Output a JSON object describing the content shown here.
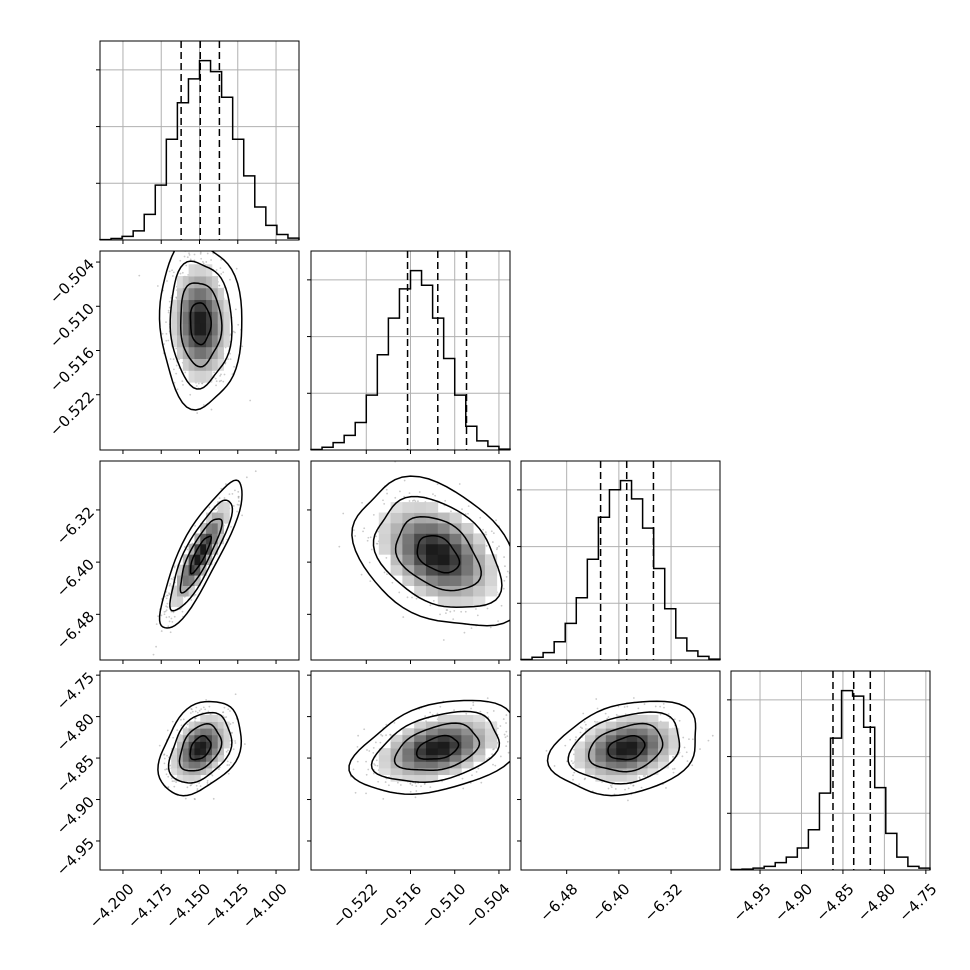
{
  "chart_data": {
    "type": "corner",
    "grid": true,
    "colors": {
      "line": "#000000",
      "grid": "#b0b0b0",
      "density_dark": "#000000",
      "density_light": "#ffffff",
      "scatter": "#9e9e9e"
    },
    "parameters": [
      {
        "range": [
          -4.215,
          -4.085
        ],
        "ticks": [
          "−4.200",
          "−4.175",
          "−4.150",
          "−4.125",
          "−4.100"
        ],
        "tick_values": [
          -4.2,
          -4.175,
          -4.15,
          -4.125,
          -4.1
        ],
        "quantiles": [
          -4.162,
          -4.1495,
          -4.137
        ],
        "mean": -4.1495,
        "sigma": 0.0095
      },
      {
        "range": [
          -0.5295,
          -0.5025
        ],
        "ticks": [
          "−0.522",
          "−0.516",
          "−0.510",
          "−0.504"
        ],
        "tick_values": [
          -0.522,
          -0.516,
          -0.51,
          -0.504
        ],
        "quantiles": [
          -0.5164,
          -0.5123,
          -0.5084
        ],
        "mean": -0.5123,
        "sigma": 0.004
      },
      {
        "range": [
          -6.55,
          -6.245
        ],
        "ticks": [
          "−6.48",
          "−6.40",
          "−6.32"
        ],
        "tick_values": [
          -6.48,
          -6.4,
          -6.32
        ],
        "quantiles": [
          -6.428,
          -6.388,
          -6.347
        ],
        "mean": -6.388,
        "sigma": 0.04
      },
      {
        "range": [
          -4.985,
          -4.745
        ],
        "ticks": [
          "−4.95",
          "−4.90",
          "−4.85",
          "−4.80",
          "−4.75"
        ],
        "tick_values": [
          -4.95,
          -4.9,
          -4.85,
          -4.8,
          -4.75
        ],
        "quantiles": [
          -4.862,
          -4.837,
          -4.817
        ],
        "mean": -4.838,
        "sigma": 0.02
      }
    ],
    "correlations": {
      "1-0": -0.05,
      "2-0": 0.85,
      "2-1": -0.35,
      "3-0": 0.35,
      "3-1": 0.35,
      "3-2": 0.25
    },
    "contour_levels_sigma": [
      0.5,
      1.0,
      1.5,
      2.0
    ],
    "histograms": [
      [
        0.002,
        0.008,
        0.02,
        0.05,
        0.14,
        0.3,
        0.55,
        0.75,
        0.88,
        0.98,
        0.92,
        0.78,
        0.55,
        0.35,
        0.18,
        0.08,
        0.03,
        0.01
      ],
      [
        0.003,
        0.015,
        0.04,
        0.08,
        0.15,
        0.3,
        0.52,
        0.72,
        0.88,
        0.98,
        0.9,
        0.72,
        0.5,
        0.3,
        0.13,
        0.05,
        0.02,
        0.005
      ],
      [
        0.003,
        0.015,
        0.04,
        0.1,
        0.2,
        0.34,
        0.55,
        0.78,
        0.93,
        0.98,
        0.88,
        0.72,
        0.5,
        0.28,
        0.12,
        0.05,
        0.02,
        0.005
      ],
      [
        0.003,
        0.005,
        0.01,
        0.02,
        0.04,
        0.07,
        0.12,
        0.22,
        0.42,
        0.72,
        0.98,
        0.95,
        0.78,
        0.45,
        0.2,
        0.07,
        0.02,
        0.01
      ]
    ]
  }
}
